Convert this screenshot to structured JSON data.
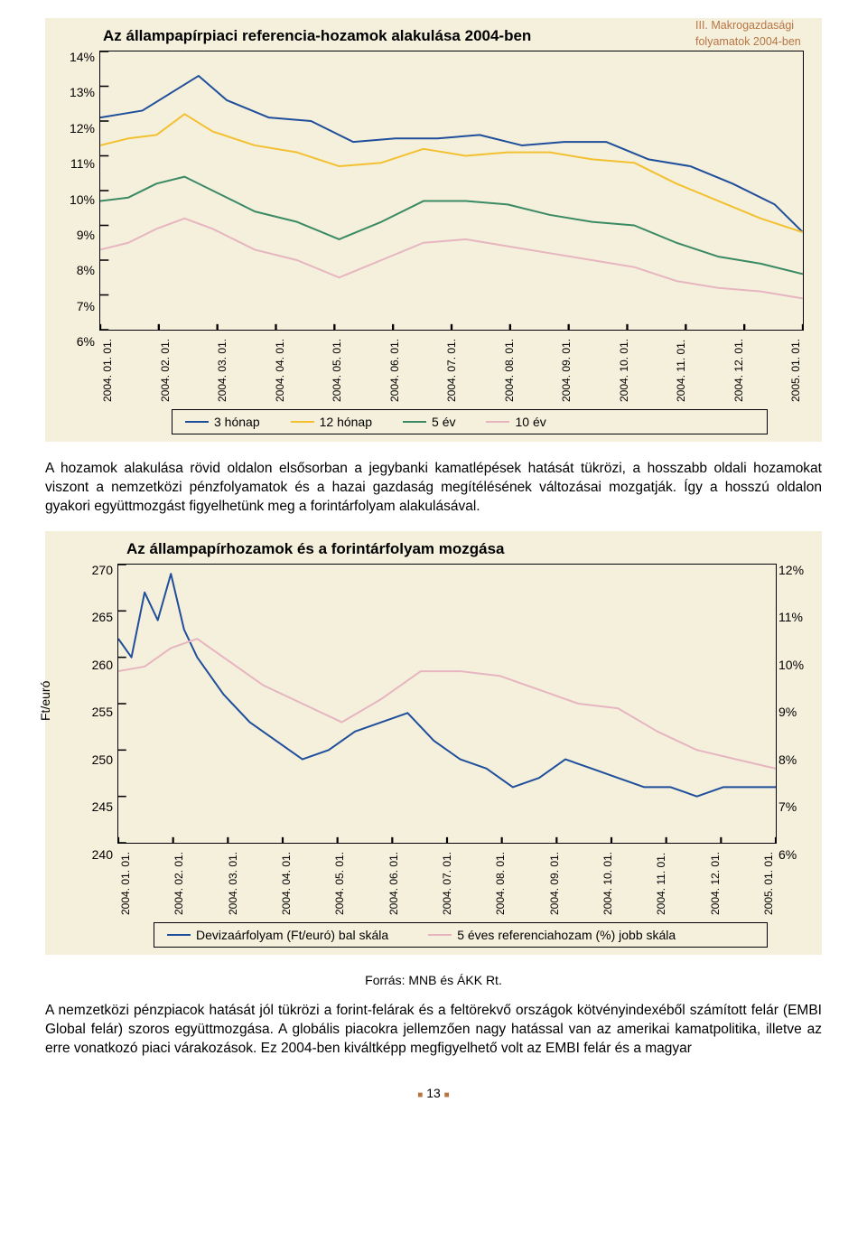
{
  "header_note_line1": "III. Makrogazdasági",
  "header_note_line2": "folyamatok 2004-ben",
  "chart1": {
    "type": "line",
    "title": "Az állampapírpiaci referencia-hozamok alakulása 2004-ben",
    "background_color": "#f5f0dc",
    "border_color": "#000000",
    "ylim": [
      6,
      14
    ],
    "ytick_step": 1,
    "y_ticks": [
      "14%",
      "13%",
      "12%",
      "11%",
      "10%",
      "9%",
      "8%",
      "7%",
      "6%"
    ],
    "x_ticks": [
      "2004. 01. 01.",
      "2004. 02. 01.",
      "2004. 03. 01.",
      "2004. 04. 01.",
      "2004. 05. 01.",
      "2004. 06. 01.",
      "2004. 07. 01.",
      "2004. 08. 01.",
      "2004. 09. 01.",
      "2004. 10. 01.",
      "2004. 11. 01.",
      "2004. 12. 01.",
      "2005. 01. 01."
    ],
    "series": [
      {
        "name": "3 hónap",
        "color": "#1f4e9b",
        "width": 2,
        "points": [
          [
            0,
            12.1
          ],
          [
            3,
            12.2
          ],
          [
            6,
            12.3
          ],
          [
            10,
            12.8
          ],
          [
            14,
            13.3
          ],
          [
            18,
            12.6
          ],
          [
            24,
            12.1
          ],
          [
            30,
            12.0
          ],
          [
            36,
            11.4
          ],
          [
            42,
            11.5
          ],
          [
            48,
            11.5
          ],
          [
            54,
            11.6
          ],
          [
            60,
            11.3
          ],
          [
            66,
            11.4
          ],
          [
            72,
            11.4
          ],
          [
            78,
            10.9
          ],
          [
            84,
            10.7
          ],
          [
            90,
            10.2
          ],
          [
            96,
            9.6
          ],
          [
            100,
            8.8
          ]
        ]
      },
      {
        "name": "12 hónap",
        "color": "#f2c030",
        "width": 2,
        "points": [
          [
            0,
            11.3
          ],
          [
            4,
            11.5
          ],
          [
            8,
            11.6
          ],
          [
            12,
            12.2
          ],
          [
            16,
            11.7
          ],
          [
            22,
            11.3
          ],
          [
            28,
            11.1
          ],
          [
            34,
            10.7
          ],
          [
            40,
            10.8
          ],
          [
            46,
            11.2
          ],
          [
            52,
            11.0
          ],
          [
            58,
            11.1
          ],
          [
            64,
            11.1
          ],
          [
            70,
            10.9
          ],
          [
            76,
            10.8
          ],
          [
            82,
            10.2
          ],
          [
            88,
            9.7
          ],
          [
            94,
            9.2
          ],
          [
            100,
            8.8
          ]
        ]
      },
      {
        "name": "5 év",
        "color": "#3a8a64",
        "width": 2,
        "points": [
          [
            0,
            9.7
          ],
          [
            4,
            9.8
          ],
          [
            8,
            10.2
          ],
          [
            12,
            10.4
          ],
          [
            16,
            10.0
          ],
          [
            22,
            9.4
          ],
          [
            28,
            9.1
          ],
          [
            34,
            8.6
          ],
          [
            40,
            9.1
          ],
          [
            46,
            9.7
          ],
          [
            52,
            9.7
          ],
          [
            58,
            9.6
          ],
          [
            64,
            9.3
          ],
          [
            70,
            9.1
          ],
          [
            76,
            9.0
          ],
          [
            82,
            8.5
          ],
          [
            88,
            8.1
          ],
          [
            94,
            7.9
          ],
          [
            100,
            7.6
          ]
        ]
      },
      {
        "name": "10 év",
        "color": "#e6b5c0",
        "width": 2,
        "points": [
          [
            0,
            8.3
          ],
          [
            4,
            8.5
          ],
          [
            8,
            8.9
          ],
          [
            12,
            9.2
          ],
          [
            16,
            8.9
          ],
          [
            22,
            8.3
          ],
          [
            28,
            8.0
          ],
          [
            34,
            7.5
          ],
          [
            40,
            8.0
          ],
          [
            46,
            8.5
          ],
          [
            52,
            8.6
          ],
          [
            58,
            8.4
          ],
          [
            64,
            8.2
          ],
          [
            70,
            8.0
          ],
          [
            76,
            7.8
          ],
          [
            82,
            7.4
          ],
          [
            88,
            7.2
          ],
          [
            94,
            7.1
          ],
          [
            100,
            6.9
          ]
        ]
      }
    ],
    "legend_labels": [
      "3 hónap",
      "12 hónap",
      "5 év",
      "10 év"
    ],
    "legend_colors": [
      "#1f4e9b",
      "#f2c030",
      "#3a8a64",
      "#e6b5c0"
    ]
  },
  "paragraph1": "A hozamok alakulása rövid oldalon elsősorban a jegybanki kamatlépések hatását tükrözi, a hosszabb oldali hozamokat viszont a nemzetközi pénzfolyamatok és a hazai gazdaság megítélésének változásai mozgatják. Így a hosszú oldalon gyakori együttmozgást figyelhetünk meg a forintárfolyam alakulásával.",
  "chart2": {
    "type": "line",
    "title": "Az állampapírhozamok és a forintárfolyam mozgása",
    "background_color": "#f5f0dc",
    "border_color": "#000000",
    "y_left_label": "Ft/euró",
    "ylim_left": [
      240,
      270
    ],
    "y_left_ticks": [
      "270",
      "265",
      "260",
      "255",
      "250",
      "245",
      "240"
    ],
    "ylim_right": [
      6,
      12
    ],
    "y_right_ticks": [
      "12%",
      "11%",
      "10%",
      "9%",
      "8%",
      "7%",
      "6%"
    ],
    "x_ticks": [
      "2004. 01. 01.",
      "2004. 02. 01.",
      "2004. 03. 01.",
      "2004. 04. 01.",
      "2004. 05. 01.",
      "2004. 06. 01.",
      "2004. 07. 01.",
      "2004. 08. 01.",
      "2004. 09. 01.",
      "2004. 10. 01.",
      "2004. 11. 01.",
      "2004. 12. 01.",
      "2005. 01. 01."
    ],
    "series": [
      {
        "name": "Devizaárfolyam (Ft/euró) bal skála",
        "color": "#1f4e9b",
        "width": 2,
        "axis": "left",
        "points": [
          [
            0,
            262
          ],
          [
            2,
            260
          ],
          [
            4,
            267
          ],
          [
            6,
            264
          ],
          [
            8,
            269
          ],
          [
            10,
            263
          ],
          [
            12,
            260
          ],
          [
            14,
            258
          ],
          [
            16,
            256
          ],
          [
            20,
            253
          ],
          [
            24,
            251
          ],
          [
            28,
            249
          ],
          [
            32,
            250
          ],
          [
            36,
            252
          ],
          [
            40,
            253
          ],
          [
            44,
            254
          ],
          [
            48,
            251
          ],
          [
            52,
            249
          ],
          [
            56,
            248
          ],
          [
            60,
            246
          ],
          [
            64,
            247
          ],
          [
            68,
            249
          ],
          [
            72,
            248
          ],
          [
            76,
            247
          ],
          [
            80,
            246
          ],
          [
            84,
            246
          ],
          [
            88,
            245
          ],
          [
            92,
            246
          ],
          [
            96,
            246
          ],
          [
            100,
            246
          ]
        ]
      },
      {
        "name": "5 éves referenciahozam (%) jobb skála",
        "color": "#e6b5c0",
        "width": 2,
        "axis": "right",
        "points": [
          [
            0,
            9.7
          ],
          [
            4,
            9.8
          ],
          [
            8,
            10.2
          ],
          [
            12,
            10.4
          ],
          [
            16,
            10.0
          ],
          [
            22,
            9.4
          ],
          [
            28,
            9.0
          ],
          [
            34,
            8.6
          ],
          [
            40,
            9.1
          ],
          [
            46,
            9.7
          ],
          [
            52,
            9.7
          ],
          [
            58,
            9.6
          ],
          [
            64,
            9.3
          ],
          [
            70,
            9.0
          ],
          [
            76,
            8.9
          ],
          [
            82,
            8.4
          ],
          [
            88,
            8.0
          ],
          [
            94,
            7.8
          ],
          [
            100,
            7.6
          ]
        ]
      }
    ],
    "legend_labels": [
      "Devizaárfolyam (Ft/euró) bal skála",
      "5 éves referenciahozam (%) jobb skála"
    ],
    "legend_colors": [
      "#1f4e9b",
      "#e6b5c0"
    ]
  },
  "source_text": "Forrás: MNB és ÁKK Rt.",
  "paragraph2": "A nemzetközi pénzpiacok hatását jól tükrözi a forint-felárak és a feltörekvő országok kötvényindexéből számított felár (EMBI Global felár) szoros együttmozgása. A globális piacokra jellemzően nagy hatással van az amerikai kamatpolitika, illetve az erre vonatkozó piaci várakozások. Ez 2004-ben kiváltképp megfigyelhető volt az EMBI felár és a magyar",
  "page_number": "13"
}
